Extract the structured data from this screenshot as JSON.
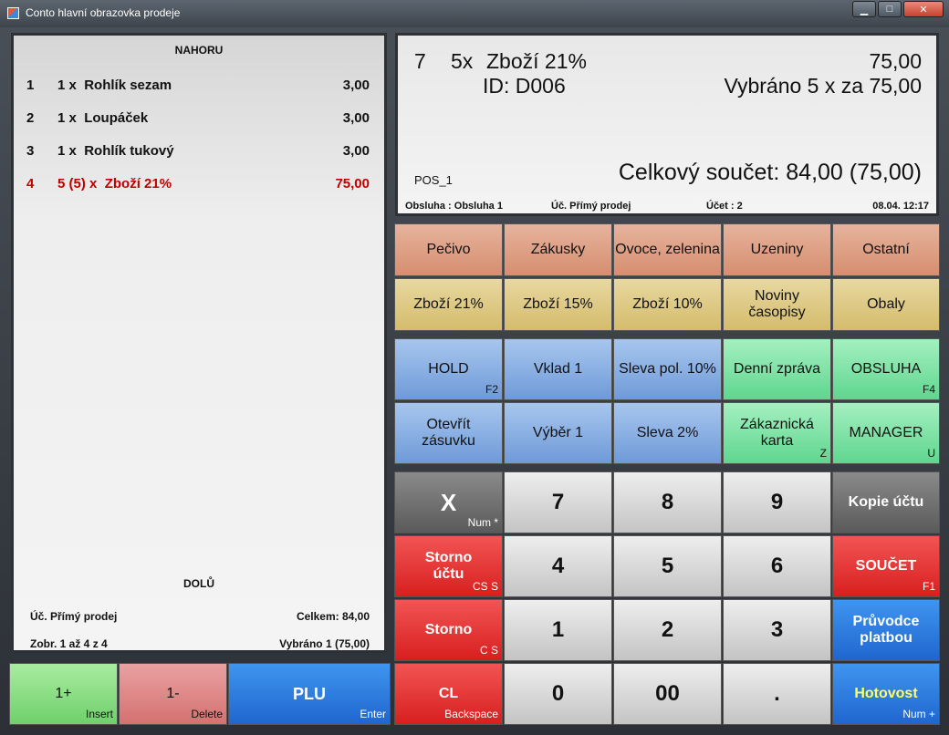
{
  "window": {
    "title": "Conto hlavní obrazovka prodeje",
    "minimize": "▁",
    "maximize": "□",
    "close": "✕"
  },
  "receipt": {
    "up_label": "NAHORU",
    "down_label": "DOLŮ",
    "items": [
      {
        "n": "1",
        "qty": "1 x",
        "name": "Rohlík sezam",
        "price": "3,00",
        "selected": false
      },
      {
        "n": "2",
        "qty": "1 x",
        "name": "Loupáček",
        "price": "3,00",
        "selected": false
      },
      {
        "n": "3",
        "qty": "1 x",
        "name": "Rohlík tukový",
        "price": "3,00",
        "selected": false
      },
      {
        "n": "4",
        "qty": "5 (5) x",
        "name": "Zboží 21%",
        "price": "75,00",
        "selected": true
      }
    ],
    "account": "Úč.  Přímý prodej",
    "total": "Celkem: 84,00",
    "paging": "Zobr.  1 až 4 z 4",
    "selected": "Vybráno 1 (75,00)"
  },
  "display": {
    "line_no": "7",
    "qty": "5x",
    "item": "Zboží 21%",
    "price": "75,00",
    "id": "ID: D006",
    "picked": "Vybráno 5 x za 75,00",
    "pos": "POS_1",
    "grand_total": "Celkový součet: 84,00 (75,00)",
    "operator": "Obsluha : Obsluha 1",
    "account": "Úč. Přímý prodej",
    "bill": "Účet : 2",
    "datetime": "08.04. 12:17"
  },
  "categories_row1": [
    "Pečivo",
    "Zákusky",
    "Ovoce, zelenina",
    "Uzeniny",
    "Ostatní"
  ],
  "categories_row2": [
    "Zboží 21%",
    "Zboží 15%",
    "Zboží 10%",
    "Noviny časopisy",
    "Obaly"
  ],
  "functions_row1": [
    {
      "label": "HOLD",
      "hint": "F2"
    },
    {
      "label": "Vklad 1",
      "hint": ""
    },
    {
      "label": "Sleva pol. 10%",
      "hint": ""
    },
    {
      "label": "Denní zpráva",
      "hint": ""
    },
    {
      "label": "OBSLUHA",
      "hint": "F4"
    }
  ],
  "functions_row2": [
    {
      "label": "Otevřít zásuvku",
      "hint": ""
    },
    {
      "label": "Výběr 1",
      "hint": ""
    },
    {
      "label": "Sleva 2%",
      "hint": ""
    },
    {
      "label": "Zákaznická karta",
      "hint": "Z"
    },
    {
      "label": "MANAGER",
      "hint": "U"
    }
  ],
  "keypad": {
    "x": {
      "label": "X",
      "hint": "Num *"
    },
    "k7": "7",
    "k8": "8",
    "k9": "9",
    "copy": "Kopie účtu",
    "storno_bill": {
      "label": "Storno účtu",
      "hint": "CS S"
    },
    "k4": "4",
    "k5": "5",
    "k6": "6",
    "sum": {
      "label": "SOUČET",
      "hint": "F1"
    },
    "storno": {
      "label": "Storno",
      "hint": "C S"
    },
    "k1": "1",
    "k2": "2",
    "k3": "3",
    "guide": "Průvodce platbou",
    "cl": {
      "label": "CL",
      "hint": "Backspace"
    },
    "k0": "0",
    "k00": "00",
    "dot": ".",
    "cash": {
      "label": "Hotovost",
      "hint": "Num +"
    }
  },
  "bottom": {
    "plus": {
      "label": "1+",
      "hint": "Insert"
    },
    "minus": {
      "label": "1-",
      "hint": "Delete"
    },
    "plu": {
      "label": "PLU",
      "hint": "Enter"
    }
  },
  "colors": {
    "selected_row": "#c00000",
    "cash_text": "#ffff66"
  }
}
